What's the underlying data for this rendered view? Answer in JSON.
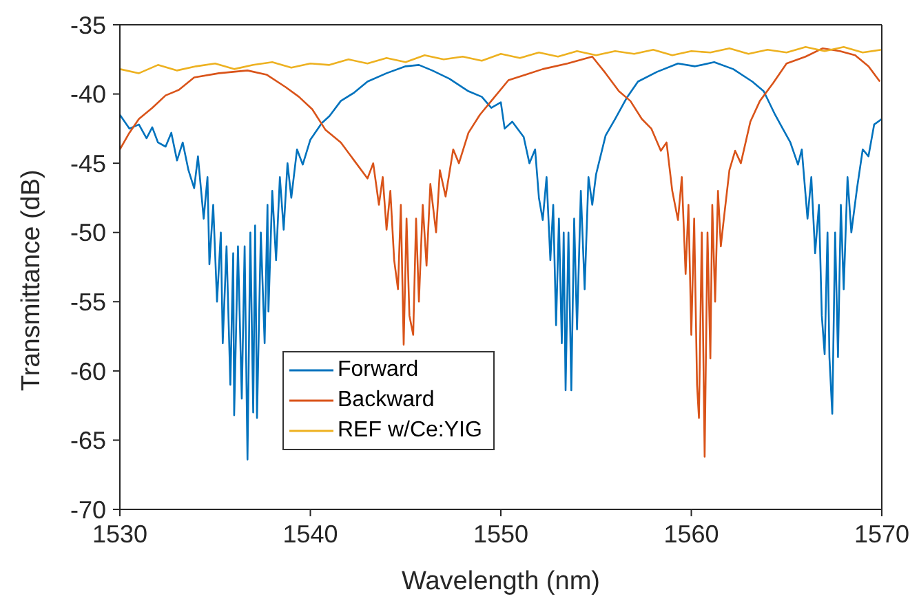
{
  "chart_data": {
    "type": "line",
    "xlabel": "Wavelength (nm)",
    "ylabel": "Transmittance (dB)",
    "xlim": [
      1530,
      1570
    ],
    "xticks": [
      1530,
      1540,
      1550,
      1560,
      1570
    ],
    "ylim": [
      -70,
      -35
    ],
    "yticks": [
      -70,
      -65,
      -60,
      -55,
      -50,
      -45,
      -40,
      -35
    ],
    "grid": false,
    "legend": "bottom",
    "marker": "none",
    "line_style": "solid",
    "series": [
      {
        "name": "Forward",
        "color": "#0072bd",
        "x": [
          1530,
          1530.5,
          1531,
          1531.4,
          1531.7,
          1532,
          1532.4,
          1532.7,
          1533,
          1533.3,
          1533.6,
          1533.9,
          1534.1,
          1534.4,
          1534.6,
          1534.7,
          1534.9,
          1535.1,
          1535.3,
          1535.4,
          1535.6,
          1535.8,
          1535.95,
          1536,
          1536.2,
          1536.4,
          1536.55,
          1536.7,
          1536.85,
          1537,
          1537.1,
          1537.2,
          1537.4,
          1537.6,
          1537.75,
          1537.8,
          1538,
          1538.2,
          1538.4,
          1538.6,
          1538.8,
          1539,
          1539.3,
          1539.6,
          1540,
          1540.6,
          1541,
          1541.6,
          1542.3,
          1543,
          1544,
          1545,
          1545.7,
          1546.4,
          1547.3,
          1548.3,
          1549,
          1549.5,
          1550,
          1550.2,
          1550.6,
          1551.2,
          1551.5,
          1551.8,
          1552,
          1552.2,
          1552.4,
          1552.6,
          1552.75,
          1552.9,
          1553.05,
          1553.2,
          1553.3,
          1553.4,
          1553.55,
          1553.7,
          1553.85,
          1554,
          1554.2,
          1554.4,
          1554.6,
          1554.8,
          1555,
          1555.5,
          1556,
          1556.6,
          1557.2,
          1558.2,
          1559.3,
          1560.2,
          1561.2,
          1562.2,
          1563.2,
          1563.8,
          1564.4,
          1564.8,
          1565.2,
          1565.6,
          1565.8,
          1566.1,
          1566.3,
          1566.5,
          1566.7,
          1566.85,
          1567,
          1567.15,
          1567.25,
          1567.4,
          1567.55,
          1567.7,
          1567.85,
          1568,
          1568.2,
          1568.4,
          1568.7,
          1569,
          1569.3,
          1569.6,
          1570
        ],
        "values": [
          -41.5,
          -42.5,
          -42.2,
          -43.2,
          -42.4,
          -43.5,
          -43.8,
          -42.8,
          -44.8,
          -43.5,
          -45.5,
          -46.8,
          -44.5,
          -49,
          -46,
          -52.3,
          -48,
          -55,
          -50,
          -58,
          -51,
          -61,
          -51.5,
          -63.2,
          -51,
          -62,
          -51,
          -66.4,
          -50,
          -63,
          -49.5,
          -63.4,
          -50,
          -58,
          -48,
          -55.7,
          -47,
          -52,
          -46,
          -49.8,
          -45,
          -47.5,
          -44,
          -45.1,
          -43.3,
          -42.1,
          -41.6,
          -40.5,
          -39.9,
          -39.1,
          -38.5,
          -38,
          -37.9,
          -38.3,
          -38.9,
          -39.8,
          -40.2,
          -41,
          -40.6,
          -42.5,
          -42,
          -43.1,
          -45,
          -44,
          -47.5,
          -49.1,
          -46,
          -52,
          -48,
          -56.7,
          -49,
          -58,
          -50,
          -61.4,
          -50,
          -61.4,
          -49,
          -57,
          -47,
          -54.1,
          -46,
          -48,
          -45.8,
          -43,
          -41.8,
          -40.3,
          -39.1,
          -38.4,
          -37.8,
          -38,
          -37.7,
          -38.2,
          -39.1,
          -39.8,
          -41.5,
          -42.5,
          -43.5,
          -45.1,
          -44,
          -49,
          -46,
          -51.5,
          -48,
          -56,
          -58.8,
          -50,
          -59,
          -63.1,
          -50,
          -59,
          -48,
          -54.1,
          -46,
          -50,
          -46.8,
          -44,
          -44.5,
          -42.2,
          -41.8
        ]
      },
      {
        "name": "Backward",
        "color": "#d95319",
        "x": [
          1530,
          1530.5,
          1531,
          1531.7,
          1532.4,
          1533.1,
          1533.9,
          1535.2,
          1536.7,
          1537.7,
          1538.7,
          1539.4,
          1540.1,
          1540.8,
          1541.6,
          1542.3,
          1543,
          1543.3,
          1543.6,
          1543.8,
          1544,
          1544.2,
          1544.4,
          1544.6,
          1544.75,
          1544.9,
          1545.05,
          1545.2,
          1545.4,
          1545.55,
          1545.7,
          1545.9,
          1546.1,
          1546.3,
          1546.6,
          1546.8,
          1547.1,
          1547.5,
          1547.8,
          1548.3,
          1548.9,
          1549.5,
          1550.4,
          1551.3,
          1552.2,
          1553.5,
          1554.8,
          1555.5,
          1556.2,
          1556.8,
          1557.4,
          1557.9,
          1558.4,
          1558.7,
          1559,
          1559.3,
          1559.5,
          1559.7,
          1559.85,
          1560,
          1560.15,
          1560.3,
          1560.4,
          1560.55,
          1560.7,
          1560.85,
          1561,
          1561.1,
          1561.25,
          1561.4,
          1561.55,
          1561.7,
          1562,
          1562.3,
          1562.6,
          1563.1,
          1563.6,
          1564.3,
          1565,
          1566,
          1566.9,
          1567.8,
          1568.6,
          1569.3,
          1569.9
        ],
        "values": [
          -44,
          -42.8,
          -41.8,
          -41,
          -40.1,
          -39.7,
          -38.8,
          -38.5,
          -38.3,
          -38.6,
          -39.5,
          -40.2,
          -41.1,
          -42.6,
          -43.5,
          -44.8,
          -46.1,
          -45,
          -48,
          -46,
          -49.8,
          -47,
          -52,
          -54.1,
          -48,
          -58.1,
          -49,
          -56,
          -57.4,
          -49,
          -55,
          -48,
          -52.4,
          -46.5,
          -50,
          -45.5,
          -47.4,
          -44,
          -45,
          -42.8,
          -41.5,
          -40.5,
          -39,
          -38.6,
          -38.2,
          -37.8,
          -37.3,
          -38.5,
          -39.8,
          -40.5,
          -41.8,
          -42.5,
          -44.1,
          -43.5,
          -47,
          -49.1,
          -46,
          -53,
          -48,
          -57.4,
          -49,
          -61,
          -63.4,
          -50,
          -66.2,
          -50,
          -59.1,
          -48,
          -55,
          -47,
          -51,
          -49.1,
          -45.5,
          -44.1,
          -45,
          -42,
          -40.5,
          -39.2,
          -37.8,
          -37.3,
          -36.7,
          -36.9,
          -37.2,
          -38,
          -39.1
        ]
      },
      {
        "name": "REF w/Ce:YIG",
        "color": "#edb120",
        "x": [
          1530,
          1531,
          1532,
          1533,
          1534,
          1535,
          1536,
          1537,
          1538,
          1539,
          1540,
          1541,
          1542,
          1543,
          1544,
          1545,
          1546,
          1547,
          1548,
          1549,
          1550,
          1551,
          1552,
          1553,
          1554,
          1555,
          1556,
          1557,
          1558,
          1559,
          1560,
          1561,
          1562,
          1563,
          1564,
          1565,
          1566,
          1567,
          1568,
          1569,
          1570
        ],
        "values": [
          -38.2,
          -38.5,
          -37.9,
          -38.3,
          -38,
          -37.8,
          -38.2,
          -37.9,
          -37.7,
          -38.1,
          -37.8,
          -37.9,
          -37.5,
          -37.8,
          -37.4,
          -37.7,
          -37.2,
          -37.5,
          -37.3,
          -37.6,
          -37.1,
          -37.4,
          -37,
          -37.3,
          -36.9,
          -37.2,
          -36.9,
          -37.1,
          -36.8,
          -37.2,
          -36.9,
          -37,
          -36.7,
          -37.1,
          -36.8,
          -37,
          -36.6,
          -36.9,
          -36.6,
          -37,
          -36.8
        ]
      }
    ]
  }
}
